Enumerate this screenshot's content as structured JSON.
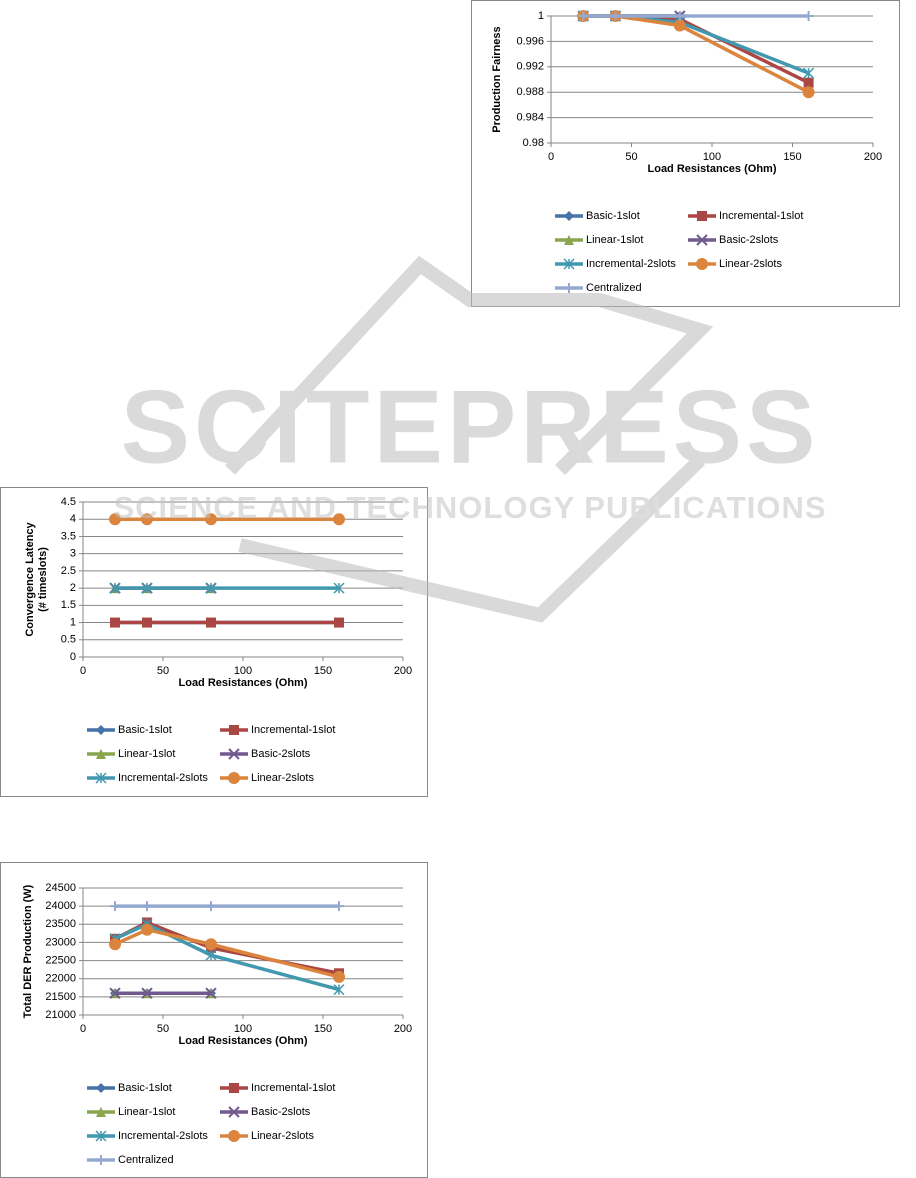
{
  "watermark": {
    "title": "SCITEPRESS",
    "subtitle": "SCIENCE AND TECHNOLOGY PUBLICATIONS"
  },
  "chart_data": [
    {
      "type": "line",
      "ylabel": "Production Fairness",
      "xlabel": "Load Resistances (Ohm)",
      "x": [
        20,
        40,
        80,
        160
      ],
      "xlim": [
        0,
        200
      ],
      "xticks": [
        0,
        50,
        100,
        150,
        200
      ],
      "ylim": [
        0.98,
        1
      ],
      "yticks": [
        0.98,
        0.984,
        0.988,
        0.992,
        0.996,
        1
      ],
      "grid": true,
      "series": [
        {
          "name": "Basic-1slot",
          "color": "#4572a7",
          "marker": "diamond",
          "values": [
            1,
            1,
            1,
            null
          ]
        },
        {
          "name": "Incremental-1slot",
          "color": "#aa4643",
          "marker": "square",
          "values": [
            1,
            1,
            0.9995,
            0.9895
          ]
        },
        {
          "name": "Linear-1slot",
          "color": "#89a54e",
          "marker": "triangle",
          "values": [
            1,
            1,
            1,
            null
          ]
        },
        {
          "name": "Basic-2slots",
          "color": "#71588f",
          "marker": "x",
          "values": [
            1,
            1,
            1,
            null
          ]
        },
        {
          "name": "Incremental-2slots",
          "color": "#4198af",
          "marker": "star",
          "values": [
            1,
            1,
            0.999,
            0.991
          ]
        },
        {
          "name": "Linear-2slots",
          "color": "#db843d",
          "marker": "circle",
          "values": [
            1,
            1,
            0.9985,
            0.988
          ]
        },
        {
          "name": "Centralized",
          "color": "#93a9cf",
          "marker": "plus",
          "values": [
            1,
            1,
            1,
            1
          ]
        }
      ]
    },
    {
      "type": "line",
      "ylabel": [
        "Convergence Latency",
        "(# timeslots)"
      ],
      "xlabel": "Load Resistances (Ohm)",
      "x": [
        20,
        40,
        80,
        160
      ],
      "xlim": [
        0,
        200
      ],
      "xticks": [
        0,
        50,
        100,
        150,
        200
      ],
      "ylim": [
        0,
        4.5
      ],
      "yticks": [
        0,
        0.5,
        1,
        1.5,
        2,
        2.5,
        3,
        3.5,
        4,
        4.5
      ],
      "grid": true,
      "series": [
        {
          "name": "Basic-1slot",
          "color": "#4572a7",
          "marker": "diamond",
          "values": [
            1,
            1,
            1,
            1
          ]
        },
        {
          "name": "Incremental-1slot",
          "color": "#aa4643",
          "marker": "square",
          "values": [
            1,
            1,
            1,
            1
          ]
        },
        {
          "name": "Linear-1slot",
          "color": "#89a54e",
          "marker": "triangle",
          "values": [
            2,
            2,
            2,
            null
          ]
        },
        {
          "name": "Basic-2slots",
          "color": "#71588f",
          "marker": "x",
          "values": [
            2,
            2,
            2,
            null
          ]
        },
        {
          "name": "Incremental-2slots",
          "color": "#4198af",
          "marker": "star",
          "values": [
            2,
            2,
            2,
            2
          ]
        },
        {
          "name": "Linear-2slots",
          "color": "#db843d",
          "marker": "circle",
          "values": [
            4,
            4,
            4,
            4
          ]
        }
      ]
    },
    {
      "type": "line",
      "ylabel": "Total DER Production (W)",
      "xlabel": "Load Resistances (Ohm)",
      "x": [
        20,
        40,
        80,
        160
      ],
      "xlim": [
        0,
        200
      ],
      "xticks": [
        0,
        50,
        100,
        150,
        200
      ],
      "ylim": [
        21000,
        24500
      ],
      "yticks": [
        21000,
        21500,
        22000,
        22500,
        23000,
        23500,
        24000,
        24500
      ],
      "grid": true,
      "series": [
        {
          "name": "Basic-1slot",
          "color": "#4572a7",
          "marker": "diamond",
          "values": [
            21600,
            21600,
            21600,
            null
          ]
        },
        {
          "name": "Incremental-1slot",
          "color": "#aa4643",
          "marker": "square",
          "values": [
            23100,
            23550,
            22850,
            22150
          ]
        },
        {
          "name": "Linear-1slot",
          "color": "#89a54e",
          "marker": "triangle",
          "values": [
            21600,
            21600,
            21600,
            null
          ]
        },
        {
          "name": "Basic-2slots",
          "color": "#71588f",
          "marker": "x",
          "values": [
            21600,
            21600,
            21600,
            null
          ]
        },
        {
          "name": "Incremental-2slots",
          "color": "#4198af",
          "marker": "star",
          "values": [
            23100,
            23500,
            22650,
            21700
          ]
        },
        {
          "name": "Linear-2slots",
          "color": "#db843d",
          "marker": "circle",
          "values": [
            22950,
            23350,
            22950,
            22050
          ]
        },
        {
          "name": "Centralized",
          "color": "#93a9cf",
          "marker": "plus",
          "values": [
            24000,
            24000,
            24000,
            24000
          ]
        }
      ]
    }
  ]
}
